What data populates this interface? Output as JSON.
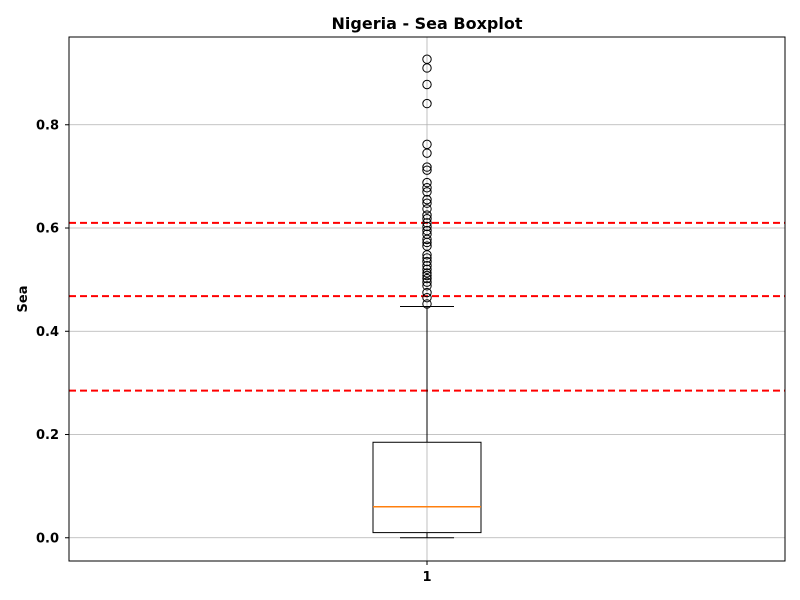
{
  "chart_data": {
    "type": "boxplot",
    "title": "Nigeria - Sea Boxplot",
    "xlabel": "",
    "ylabel": "Sea",
    "ylim": [
      -0.045,
      0.97
    ],
    "y_ticks": [
      0.0,
      0.2,
      0.4,
      0.6,
      0.8
    ],
    "y_tick_labels": [
      "0.0",
      "0.2",
      "0.4",
      "0.6",
      "0.8"
    ],
    "categories": [
      "1"
    ],
    "grid": true,
    "box": {
      "whisker_low": 0.0,
      "q1": 0.01,
      "median": 0.06,
      "q3": 0.185,
      "whisker_high": 0.448
    },
    "outliers": [
      0.453,
      0.465,
      0.475,
      0.488,
      0.495,
      0.502,
      0.508,
      0.513,
      0.52,
      0.527,
      0.535,
      0.542,
      0.548,
      0.565,
      0.572,
      0.578,
      0.588,
      0.595,
      0.603,
      0.61,
      0.618,
      0.625,
      0.637,
      0.648,
      0.655,
      0.67,
      0.678,
      0.688,
      0.712,
      0.718,
      0.745,
      0.762,
      0.841,
      0.878,
      0.91,
      0.927
    ],
    "reference_lines": [
      0.61,
      0.468,
      0.285
    ],
    "colors": {
      "box": "#000000",
      "median": "#ff7f0e",
      "reference_line": "#ff0000",
      "grid": "#b0b0b0",
      "outlier_edge": "#000000"
    }
  }
}
